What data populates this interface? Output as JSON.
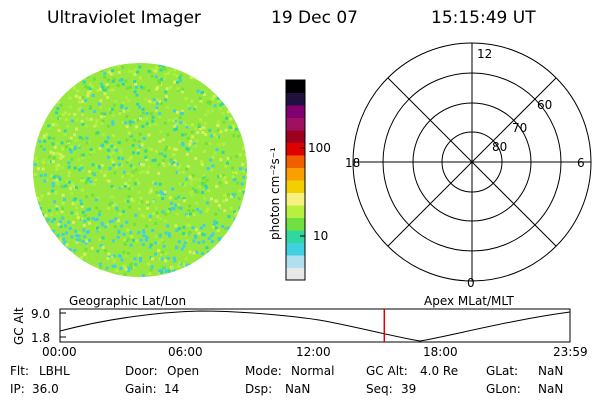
{
  "header": {
    "instrument": "Ultraviolet Imager",
    "date": "19 Dec 07",
    "time": "15:15:49 UT"
  },
  "colorbar": {
    "unit_label": "photon cm⁻²s⁻¹",
    "ticks": [
      {
        "label": "100",
        "value": 100
      },
      {
        "label": "10",
        "value": 10
      }
    ],
    "colors": [
      "#e8e8e8",
      "#b0e0f0",
      "#40d0e0",
      "#30d8a0",
      "#70e040",
      "#b8f040",
      "#f8f080",
      "#f0d000",
      "#f8a000",
      "#f06000",
      "#e00000",
      "#a00020",
      "#a01060",
      "#800070",
      "#201040",
      "#000000"
    ]
  },
  "polar": {
    "mlt_labels": [
      "12",
      "6",
      "0",
      "18"
    ],
    "lat_labels": [
      "60",
      "70",
      "80"
    ],
    "lat_rings": [
      60,
      70,
      80
    ]
  },
  "timeline": {
    "left_label": "Geographic Lat/Lon",
    "right_label": "Apex MLat/MLT",
    "axis_label": "GC Alt",
    "y_ticks": [
      "9.0",
      "1.8"
    ],
    "x_ticks": [
      "00:00",
      "06:00",
      "12:00",
      "18:00",
      "23:59"
    ],
    "current_marker_color": "#e00000",
    "current_time_fraction": 0.6359
  },
  "info": [
    {
      "key": "Flt:",
      "value": "LBHL"
    },
    {
      "key": "Door:",
      "value": "Open"
    },
    {
      "key": "Mode:",
      "value": "Normal"
    },
    {
      "key": "GC Alt:",
      "value": "4.0 Re"
    },
    {
      "key": "GLat:",
      "value": "NaN"
    },
    {
      "key": "IP:",
      "value": "36.0"
    },
    {
      "key": "Gain:",
      "value": "14"
    },
    {
      "key": "Dsp:",
      "value": "NaN"
    },
    {
      "key": "Seq:",
      "value": "39"
    },
    {
      "key": "GLon:",
      "value": "NaN"
    }
  ],
  "image": {
    "base_color": "#98e840",
    "palette": [
      "#70e040",
      "#b8f040",
      "#40d0e0",
      "#30d8a0",
      "#d8f060",
      "#a8f040"
    ]
  }
}
